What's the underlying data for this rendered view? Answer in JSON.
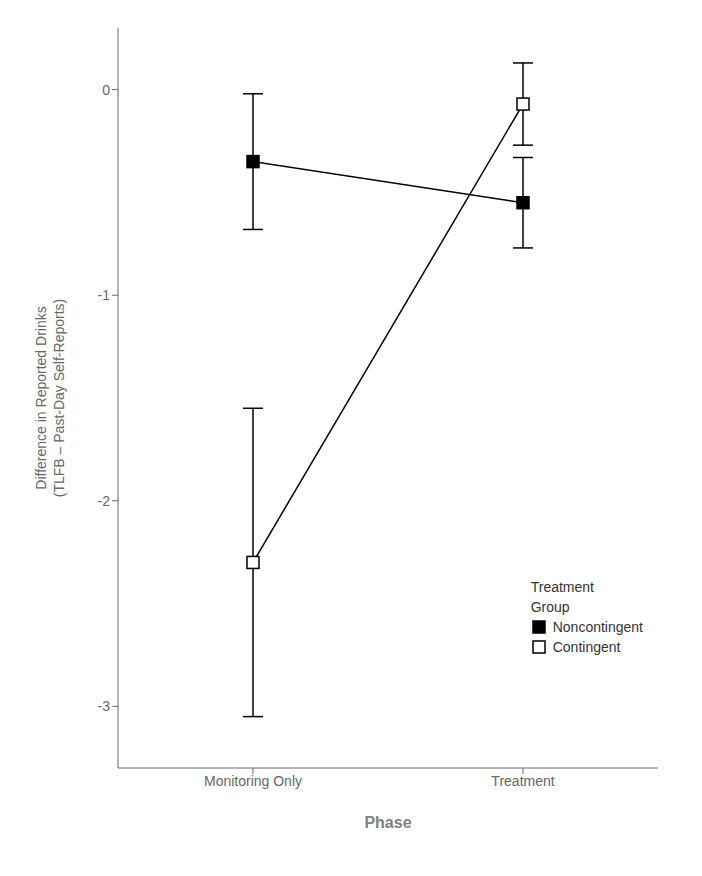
{
  "chart_data": {
    "type": "line",
    "categories": [
      "Monitoring Only",
      "Treatment"
    ],
    "series": [
      {
        "name": "Noncontingent",
        "color": "black",
        "marker": "filled square",
        "values": [
          -0.35,
          -0.55
        ],
        "error": [
          0.33,
          0.22
        ]
      },
      {
        "name": "Contingent",
        "color": "black",
        "marker": "open square",
        "values": [
          -2.3,
          -0.07
        ],
        "error": [
          0.75,
          0.2
        ]
      }
    ],
    "ylim": [
      -3.3,
      0.3
    ],
    "yticks": [
      0,
      -1,
      -2,
      -3
    ],
    "ylabel": "Difference in Reported Drinks\n(TLFB – Past-Day Self-Reports)",
    "xlabel": "Phase",
    "legend_title": "Treatment\nGroup",
    "legend": "lower right",
    "grid": false
  }
}
